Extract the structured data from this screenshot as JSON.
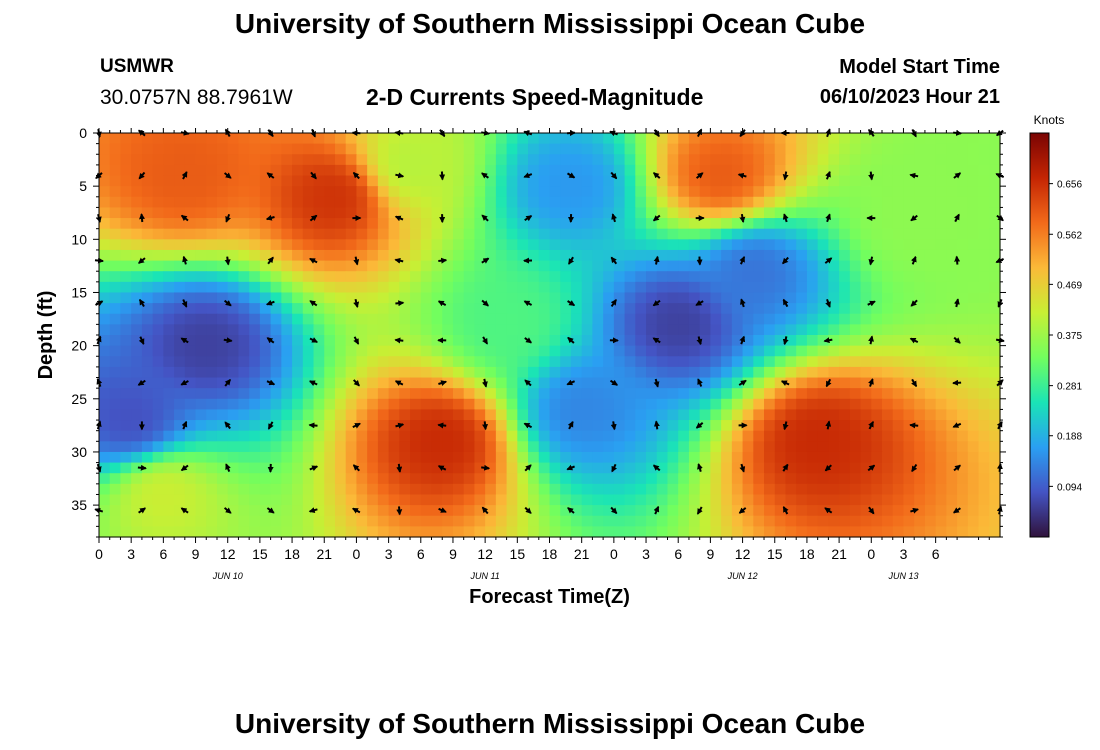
{
  "header": {
    "title": "University of Southern Mississippi Ocean Cube",
    "station": "USMWR",
    "coordinates": "30.0757N  88.7961W",
    "subtitle": "2-D Currents Speed-Magnitude",
    "model_start_label": "Model Start Time",
    "model_start_value": "06/10/2023 Hour 21"
  },
  "footer": {
    "title": "University of Southern Mississippi Ocean Cube"
  },
  "chart_data": {
    "type": "heatmap",
    "title": "2-D Currents Speed-Magnitude",
    "xlabel": "Forecast Time(Z)",
    "ylabel": "Depth (ft)",
    "x_hours": [
      0,
      84
    ],
    "y_depth_ft": [
      0,
      38
    ],
    "x_tick_labels": [
      "0",
      "3",
      "6",
      "9",
      "12",
      "15",
      "18",
      "21",
      "0",
      "3",
      "6",
      "9",
      "12",
      "15",
      "18",
      "21",
      "0",
      "3",
      "6",
      "9",
      "12",
      "15",
      "18",
      "21",
      "0",
      "3",
      "6"
    ],
    "y_ticks": [
      0,
      5,
      10,
      15,
      20,
      25,
      30,
      35
    ],
    "date_labels": [
      {
        "text": "JUN 10",
        "hour": 12
      },
      {
        "text": "JUN 11",
        "hour": 36
      },
      {
        "text": "JUN 12",
        "hour": 60
      },
      {
        "text": "JUN 13",
        "hour": 75
      }
    ],
    "colorbar": {
      "unit": "Knots",
      "min": 0.0,
      "max": 0.75,
      "ticks": [
        0.656,
        0.562,
        0.469,
        0.375,
        0.281,
        0.188,
        0.094
      ],
      "colors": [
        "#30123b",
        "#4454c4",
        "#2a9ff2",
        "#1ae4b6",
        "#72fe5e",
        "#c8ef34",
        "#fbb938",
        "#f26a1a",
        "#c42503",
        "#7a0403"
      ]
    },
    "speed_centers_knots": [
      {
        "hour": 8,
        "depth": 4,
        "value": 0.6
      },
      {
        "hour": 22,
        "depth": 6,
        "value": 0.65
      },
      {
        "hour": 29,
        "depth": 3,
        "value": 0.4
      },
      {
        "hour": 44,
        "depth": 5,
        "value": 0.16
      },
      {
        "hour": 58,
        "depth": 4,
        "value": 0.6
      },
      {
        "hour": 76,
        "depth": 8,
        "value": 0.36
      },
      {
        "hour": 10,
        "depth": 20,
        "value": 0.06
      },
      {
        "hour": 3,
        "depth": 27,
        "value": 0.08
      },
      {
        "hour": 6,
        "depth": 34,
        "value": 0.42
      },
      {
        "hour": 32,
        "depth": 29,
        "value": 0.66
      },
      {
        "hour": 45,
        "depth": 26,
        "value": 0.14
      },
      {
        "hour": 54,
        "depth": 18,
        "value": 0.06
      },
      {
        "hour": 61,
        "depth": 13,
        "value": 0.12
      },
      {
        "hour": 67,
        "depth": 29,
        "value": 0.66
      },
      {
        "hour": 38,
        "depth": 18,
        "value": 0.3
      }
    ],
    "vector_grid": {
      "hours": [
        0,
        4,
        8,
        12,
        16,
        20,
        24,
        28,
        32,
        36,
        40,
        44,
        48,
        52,
        56,
        60,
        64,
        68,
        72,
        76,
        80,
        84
      ],
      "depths": [
        0,
        4,
        8,
        12,
        16,
        19.5,
        23.5,
        27.5,
        31.5,
        35.5
      ]
    }
  }
}
